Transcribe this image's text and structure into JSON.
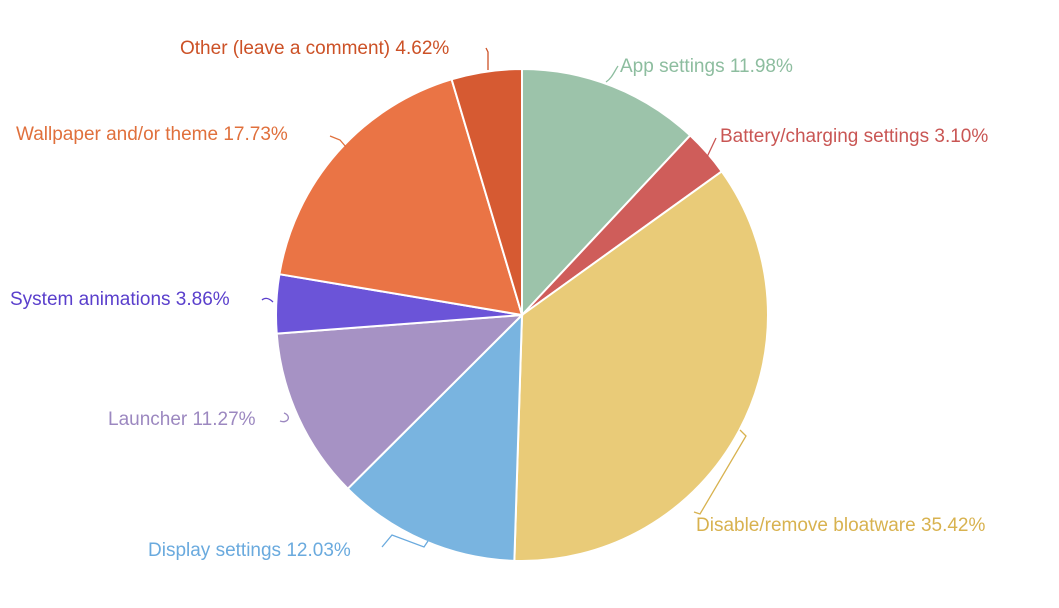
{
  "chart_data": {
    "type": "pie",
    "title": "",
    "series": [
      {
        "labels": [
          "App settings",
          "Battery/charging settings",
          "Disable/remove bloatware",
          "Display settings",
          "Launcher",
          "System animations",
          "Wallpaper and/or theme",
          "Other (leave a comment)"
        ],
        "values": [
          11.98,
          3.1,
          35.42,
          12.03,
          11.27,
          3.86,
          17.73,
          4.62
        ],
        "display_labels": [
          "App settings 11.98%",
          "Battery/charging settings 3.10%",
          "Disable/remove bloatware 35.42%",
          "Display settings 12.03%",
          "Launcher 11.27%",
          "System animations 3.86%",
          "Wallpaper and/or theme 17.73%",
          "Other (leave a comment) 4.62%"
        ],
        "colors": [
          "#9cc3aa",
          "#cf5d5a",
          "#e9cb78",
          "#79b4e0",
          "#a692c4",
          "#6b54d8",
          "#ea7445",
          "#d65a32"
        ],
        "label_colors": [
          "#8dbd9f",
          "#c95654",
          "#d8b24f",
          "#6aaade",
          "#9c88c0",
          "#5a3fcc",
          "#e0703c",
          "#cc5126"
        ]
      }
    ],
    "start_angle": "12 o'clock",
    "direction": "clockwise",
    "legend": "none",
    "labels_outside_with_leader_lines": true
  }
}
